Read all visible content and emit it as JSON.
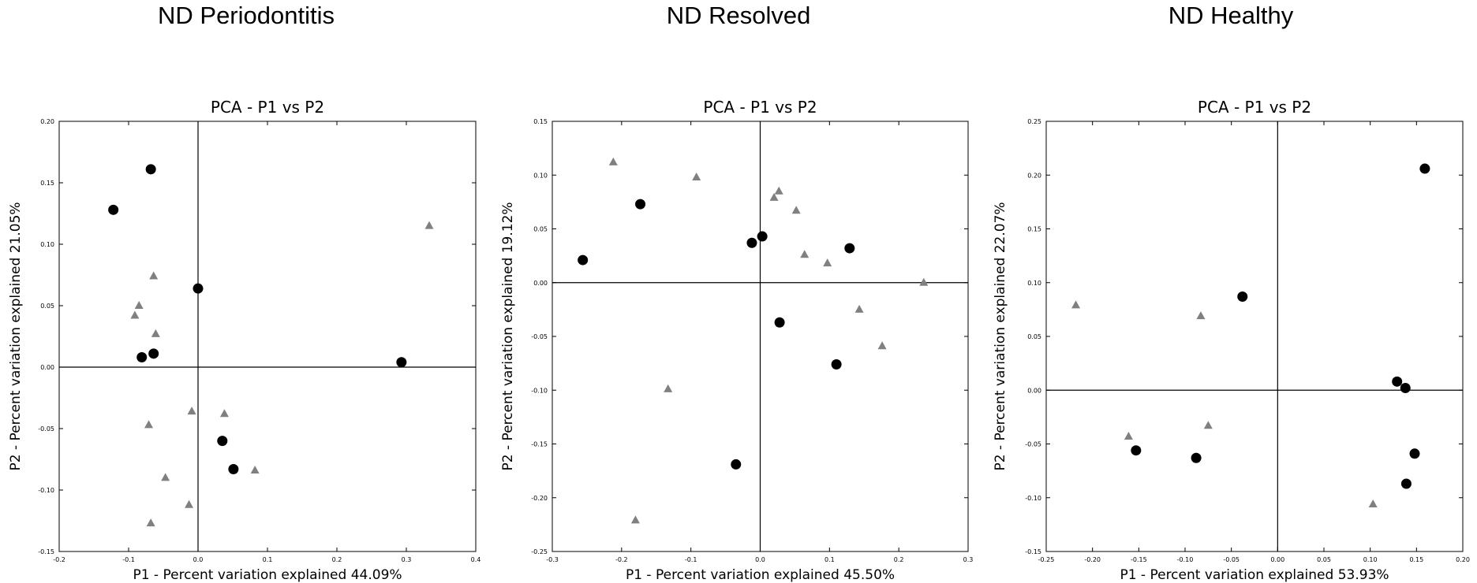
{
  "panels": [
    {
      "heading": "ND Periodontitis"
    },
    {
      "heading": "ND Resolved"
    },
    {
      "heading": "ND Healthy"
    }
  ],
  "chart_data": [
    {
      "type": "scatter",
      "title": "PCA - P1 vs P2",
      "xlabel": "P1 - Percent variation explained 44.09%",
      "ylabel": "P2 - Percent variation explained 21.05%",
      "xlim": [
        -0.2,
        0.4
      ],
      "ylim": [
        -0.15,
        0.2
      ],
      "xticks": [
        "-0.2",
        "-0.1",
        "0.0",
        "0.1",
        "0.2",
        "0.3",
        "0.4"
      ],
      "xtick_values": [
        -0.2,
        -0.1,
        0.0,
        0.1,
        0.2,
        0.3,
        0.4
      ],
      "yticks": [
        "-0.15",
        "-0.10",
        "-0.05",
        "0.00",
        "0.05",
        "0.10",
        "0.15",
        "0.20"
      ],
      "ytick_values": [
        -0.15,
        -0.1,
        -0.05,
        0.0,
        0.05,
        0.1,
        0.15,
        0.2
      ],
      "series": [
        {
          "marker": "circle",
          "color": "#000000",
          "points": [
            [
              -0.068,
              0.161
            ],
            [
              -0.122,
              0.128
            ],
            [
              0.0,
              0.064
            ],
            [
              -0.081,
              0.008
            ],
            [
              -0.064,
              0.011
            ],
            [
              0.293,
              0.004
            ],
            [
              0.035,
              -0.06
            ],
            [
              0.051,
              -0.083
            ]
          ]
        },
        {
          "marker": "triangle",
          "color": "#808080",
          "points": [
            [
              0.333,
              0.115
            ],
            [
              -0.064,
              0.074
            ],
            [
              -0.085,
              0.05
            ],
            [
              -0.091,
              0.042
            ],
            [
              -0.061,
              0.027
            ],
            [
              -0.009,
              -0.036
            ],
            [
              0.038,
              -0.038
            ],
            [
              -0.071,
              -0.047
            ],
            [
              0.082,
              -0.084
            ],
            [
              -0.047,
              -0.09
            ],
            [
              -0.013,
              -0.112
            ],
            [
              -0.068,
              -0.127
            ]
          ]
        }
      ]
    },
    {
      "type": "scatter",
      "title": "PCA - P1 vs P2",
      "xlabel": "P1 - Percent variation explained 45.50%",
      "ylabel": "P2 - Percent variation explained 19.12%",
      "xlim": [
        -0.3,
        0.3
      ],
      "ylim": [
        -0.25,
        0.15
      ],
      "xticks": [
        "-0.3",
        "-0.2",
        "-0.1",
        "0.0",
        "0.1",
        "0.2",
        "0.3"
      ],
      "xtick_values": [
        -0.3,
        -0.2,
        -0.1,
        0.0,
        0.1,
        0.2,
        0.3
      ],
      "yticks": [
        "-0.25",
        "-0.20",
        "-0.15",
        "-0.10",
        "-0.05",
        "0.00",
        "0.05",
        "0.10",
        "0.15"
      ],
      "ytick_values": [
        -0.25,
        -0.2,
        -0.15,
        -0.1,
        -0.05,
        0.0,
        0.05,
        0.1,
        0.15
      ],
      "series": [
        {
          "marker": "circle",
          "color": "#000000",
          "points": [
            [
              -0.256,
              0.021
            ],
            [
              -0.173,
              0.073
            ],
            [
              -0.012,
              0.037
            ],
            [
              0.003,
              0.043
            ],
            [
              0.129,
              0.032
            ],
            [
              0.028,
              -0.037
            ],
            [
              0.11,
              -0.076
            ],
            [
              -0.035,
              -0.169
            ]
          ]
        },
        {
          "marker": "triangle",
          "color": "#808080",
          "points": [
            [
              -0.212,
              0.112
            ],
            [
              -0.092,
              0.098
            ],
            [
              0.027,
              0.085
            ],
            [
              0.02,
              0.079
            ],
            [
              0.052,
              0.067
            ],
            [
              0.064,
              0.026
            ],
            [
              0.097,
              0.018
            ],
            [
              0.236,
              0.0
            ],
            [
              0.143,
              -0.025
            ],
            [
              0.176,
              -0.059
            ],
            [
              -0.133,
              -0.099
            ],
            [
              -0.18,
              -0.221
            ]
          ]
        }
      ]
    },
    {
      "type": "scatter",
      "title": "PCA - P1 vs P2",
      "xlabel": "P1 - Percent variation explained 53.93%",
      "ylabel": "P2 - Percent variation explained 22.07%",
      "xlim": [
        -0.25,
        0.2
      ],
      "ylim": [
        -0.15,
        0.25
      ],
      "xticks": [
        "-0.25",
        "-0.20",
        "-0.15",
        "-0.10",
        "-0.05",
        "0.00",
        "0.05",
        "0.10",
        "0.15",
        "0.20"
      ],
      "xtick_values": [
        -0.25,
        -0.2,
        -0.15,
        -0.1,
        -0.05,
        0.0,
        0.05,
        0.1,
        0.15,
        0.2
      ],
      "yticks": [
        "-0.15",
        "-0.10",
        "-0.05",
        "0.00",
        "0.05",
        "0.10",
        "0.15",
        "0.20",
        "0.25"
      ],
      "ytick_values": [
        -0.15,
        -0.1,
        -0.05,
        0.0,
        0.05,
        0.1,
        0.15,
        0.2,
        0.25
      ],
      "series": [
        {
          "marker": "circle",
          "color": "#000000",
          "points": [
            [
              0.159,
              0.206
            ],
            [
              -0.038,
              0.087
            ],
            [
              0.129,
              0.008
            ],
            [
              0.138,
              0.002
            ],
            [
              -0.153,
              -0.056
            ],
            [
              -0.088,
              -0.063
            ],
            [
              0.148,
              -0.059
            ],
            [
              0.139,
              -0.087
            ]
          ]
        },
        {
          "marker": "triangle",
          "color": "#808080",
          "points": [
            [
              -0.218,
              0.079
            ],
            [
              -0.083,
              0.069
            ],
            [
              -0.161,
              -0.043
            ],
            [
              -0.075,
              -0.033
            ],
            [
              0.103,
              -0.106
            ]
          ]
        }
      ]
    }
  ]
}
